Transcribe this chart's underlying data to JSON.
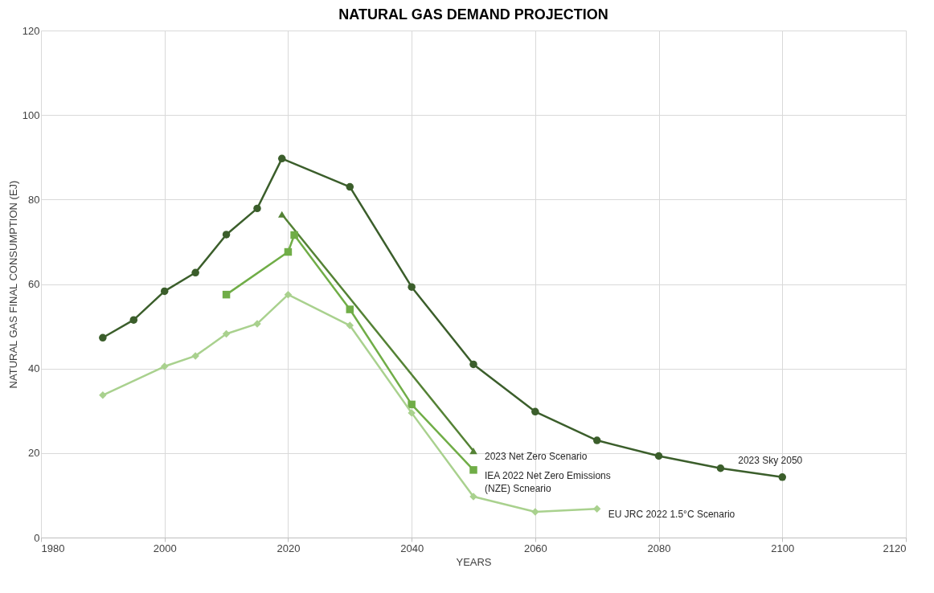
{
  "chart_data": {
    "type": "line",
    "title": "NATURAL GAS DEMAND PROJECTION",
    "xlabel": "YEARS",
    "ylabel": "NATURAL GAS FINAL CONSUMPTION (EJ)",
    "xlim": [
      1980,
      2120
    ],
    "xticks": [
      1980,
      2000,
      2020,
      2040,
      2060,
      2080,
      2100,
      2120
    ],
    "ylim": [
      0,
      120
    ],
    "yticks": [
      0,
      20,
      40,
      60,
      80,
      100,
      120
    ],
    "grid": true,
    "line_style": "solid",
    "series": [
      {
        "name": "2023 Sky 2050",
        "color": "#3b5e2b",
        "marker": "circle",
        "x": [
          1990,
          1995,
          2000,
          2005,
          2010,
          2015,
          2019,
          2030,
          2040,
          2050,
          2060,
          2070,
          2080,
          2090,
          2100
        ],
        "values": [
          47.3,
          51.5,
          58.3,
          62.7,
          71.7,
          77.9,
          89.7,
          83,
          59.3,
          41,
          29.8,
          23,
          19.3,
          16.4,
          14.3
        ]
      },
      {
        "name": "2023 Net Zero Scenario",
        "color": "#548235",
        "marker": "triangle",
        "x": [
          2019,
          2050
        ],
        "values": [
          76.5,
          20.5
        ]
      },
      {
        "name": "IEA 2022 Net Zero Emissions\n(NZE) Scneario",
        "color": "#70ad47",
        "marker": "square",
        "x": [
          2010,
          2020,
          2021,
          2030,
          2040,
          2050
        ],
        "values": [
          57.5,
          67.6,
          71.6,
          54,
          31.5,
          16
        ]
      },
      {
        "name": "EU JRC 2022 1.5°C Scenario",
        "color": "#a9d18e",
        "marker": "diamond",
        "x": [
          1990,
          2000,
          2005,
          2010,
          2015,
          2020,
          2030,
          2040,
          2050,
          2060,
          2070
        ],
        "values": [
          33.7,
          40.5,
          43,
          48.2,
          50.6,
          57.5,
          50.2,
          29.5,
          9.7,
          6.1,
          6.8
        ]
      }
    ]
  }
}
